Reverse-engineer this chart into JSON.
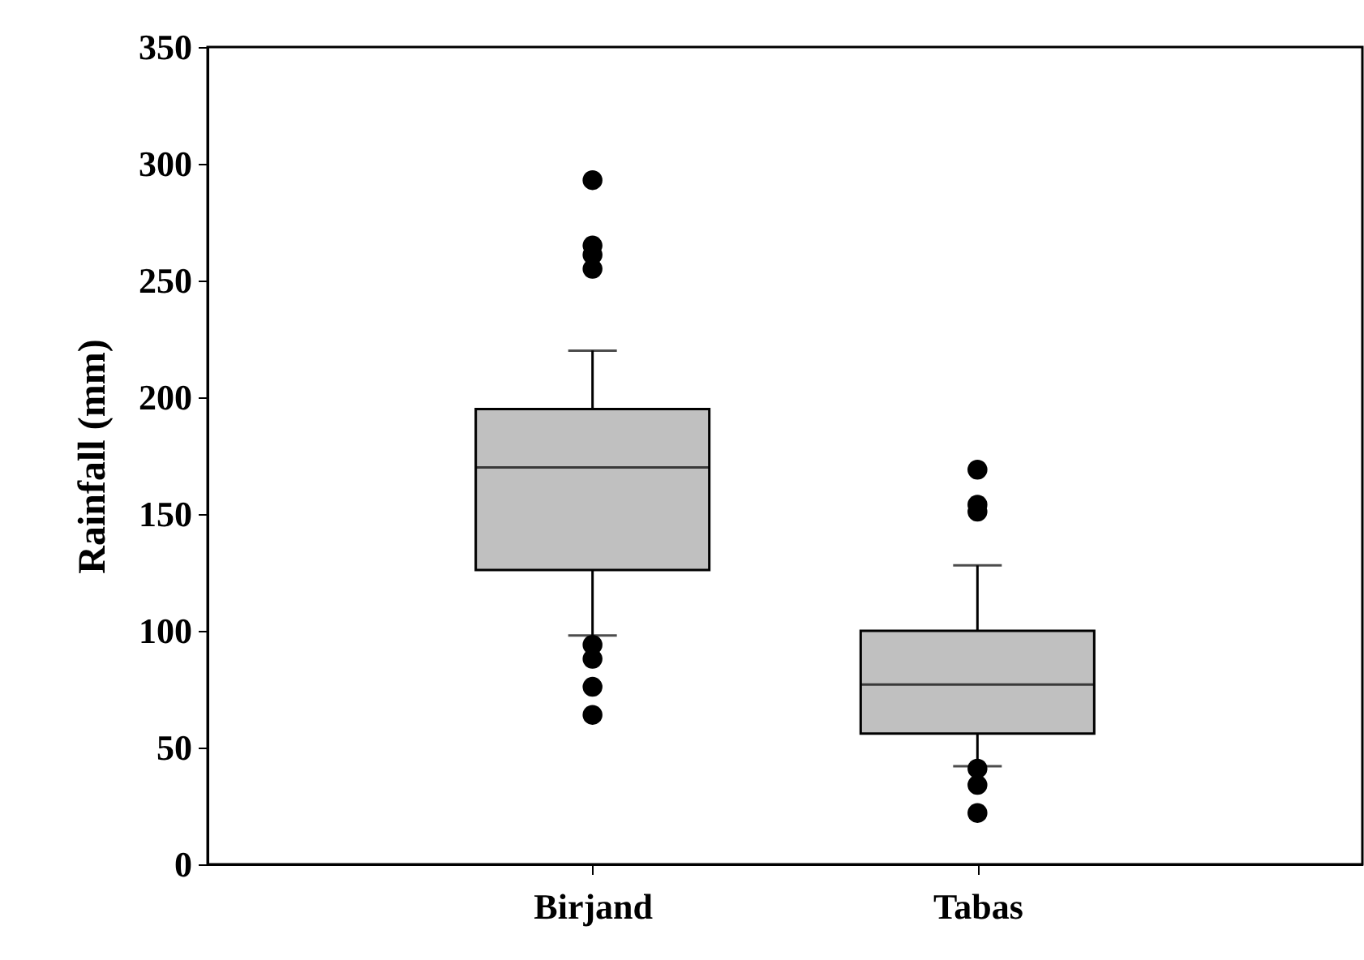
{
  "chart_data": {
    "type": "box",
    "ylabel": "Rainfall (mm)",
    "categories": [
      "Birjand",
      "Tabas"
    ],
    "color": "#c0c0c0",
    "boxes": [
      {
        "low": 98,
        "q1": 126,
        "median": 170,
        "q3": 195,
        "high": 220,
        "outliers": [
          293,
          265,
          261,
          255,
          94,
          88,
          76,
          64
        ]
      },
      {
        "low": 42,
        "q1": 56,
        "median": 77,
        "q3": 100,
        "high": 128,
        "outliers": [
          169,
          154,
          151,
          41,
          34,
          22
        ]
      }
    ],
    "ylim": [
      0,
      350
    ],
    "yticks": [
      0,
      50,
      100,
      150,
      200,
      250,
      300,
      350
    ],
    "grid": false
  }
}
